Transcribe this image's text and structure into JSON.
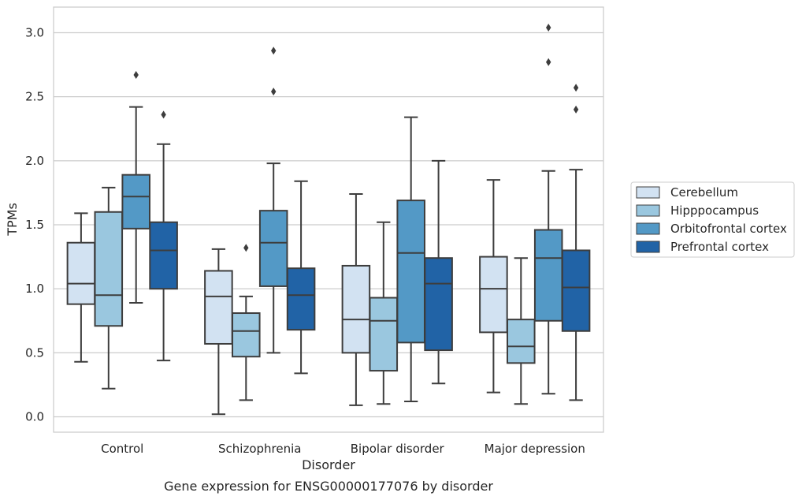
{
  "chart_data": {
    "type": "box",
    "caption": "Gene expression for ENSG00000177076 by disorder",
    "xlabel": "Disorder",
    "ylabel": "TPMs",
    "ylim": [
      -0.12,
      3.2
    ],
    "yticks": [
      0.0,
      0.5,
      1.0,
      1.5,
      2.0,
      2.5,
      3.0
    ],
    "ytick_labels": [
      "0.0",
      "0.5",
      "1.0",
      "1.5",
      "2.0",
      "2.5",
      "3.0"
    ],
    "grid": "horizontal",
    "legend_placement": "right",
    "categories": [
      "Control",
      "Schizophrenia",
      "Bipolar disorder",
      "Major depression"
    ],
    "series": [
      {
        "name": "Cerebellum",
        "color": "#d2e2f2",
        "boxes": [
          {
            "whislo": 0.43,
            "q1": 0.88,
            "med": 1.04,
            "q3": 1.36,
            "whishi": 1.59,
            "fliers": []
          },
          {
            "whislo": 0.02,
            "q1": 0.57,
            "med": 0.94,
            "q3": 1.14,
            "whishi": 1.31,
            "fliers": []
          },
          {
            "whislo": 0.09,
            "q1": 0.5,
            "med": 0.76,
            "q3": 1.18,
            "whishi": 1.74,
            "fliers": []
          },
          {
            "whislo": 0.19,
            "q1": 0.66,
            "med": 1.0,
            "q3": 1.25,
            "whishi": 1.85,
            "fliers": []
          }
        ]
      },
      {
        "name": "Hipppocampus",
        "color": "#9ac7df",
        "boxes": [
          {
            "whislo": 0.22,
            "q1": 0.71,
            "med": 0.95,
            "q3": 1.6,
            "whishi": 1.79,
            "fliers": []
          },
          {
            "whislo": 0.13,
            "q1": 0.47,
            "med": 0.67,
            "q3": 0.81,
            "whishi": 0.94,
            "fliers": [
              1.32
            ]
          },
          {
            "whislo": 0.1,
            "q1": 0.36,
            "med": 0.75,
            "q3": 0.93,
            "whishi": 1.52,
            "fliers": []
          },
          {
            "whislo": 0.1,
            "q1": 0.42,
            "med": 0.55,
            "q3": 0.76,
            "whishi": 1.24,
            "fliers": []
          }
        ]
      },
      {
        "name": "Orbitofrontal cortex",
        "color": "#5399c6",
        "boxes": [
          {
            "whislo": 0.89,
            "q1": 1.47,
            "med": 1.72,
            "q3": 1.89,
            "whishi": 2.42,
            "fliers": [
              2.67
            ]
          },
          {
            "whislo": 0.5,
            "q1": 1.02,
            "med": 1.36,
            "q3": 1.61,
            "whishi": 1.98,
            "fliers": [
              2.54,
              2.86
            ]
          },
          {
            "whislo": 0.12,
            "q1": 0.58,
            "med": 1.28,
            "q3": 1.69,
            "whishi": 2.34,
            "fliers": []
          },
          {
            "whislo": 0.18,
            "q1": 0.75,
            "med": 1.24,
            "q3": 1.46,
            "whishi": 1.92,
            "fliers": [
              2.77,
              3.04
            ]
          }
        ]
      },
      {
        "name": "Prefrontal cortex",
        "color": "#2163a6",
        "boxes": [
          {
            "whislo": 0.44,
            "q1": 1.0,
            "med": 1.3,
            "q3": 1.52,
            "whishi": 2.13,
            "fliers": [
              2.36
            ]
          },
          {
            "whislo": 0.34,
            "q1": 0.68,
            "med": 0.95,
            "q3": 1.16,
            "whishi": 1.84,
            "fliers": []
          },
          {
            "whislo": 0.26,
            "q1": 0.52,
            "med": 1.04,
            "q3": 1.24,
            "whishi": 2.0,
            "fliers": []
          },
          {
            "whislo": 0.13,
            "q1": 0.67,
            "med": 1.01,
            "q3": 1.3,
            "whishi": 1.93,
            "fliers": [
              2.4,
              2.57
            ]
          }
        ]
      }
    ]
  }
}
